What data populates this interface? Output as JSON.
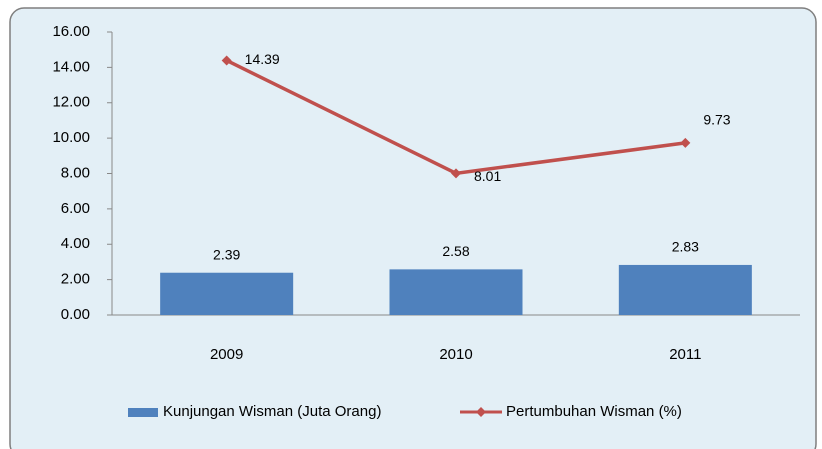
{
  "chart_data": {
    "type": "combo",
    "categories": [
      "2009",
      "2010",
      "2011"
    ],
    "series": [
      {
        "name": "Kunjungan Wisman  (Juta Orang)",
        "type": "bar",
        "color": "#4f81bd",
        "values": [
          2.39,
          2.58,
          2.83
        ]
      },
      {
        "name": "Pertumbuhan Wisman (%)",
        "type": "line",
        "color": "#c0504d",
        "values": [
          14.39,
          8.01,
          9.73
        ]
      }
    ],
    "ylim": [
      0,
      16
    ],
    "yticks": [
      {
        "value": 0,
        "label": "0.00"
      },
      {
        "value": 2,
        "label": "2.00"
      },
      {
        "value": 4,
        "label": "4.00"
      },
      {
        "value": 6,
        "label": "6.00"
      },
      {
        "value": 8,
        "label": "8.00"
      },
      {
        "value": 10,
        "label": "10.00"
      },
      {
        "value": 12,
        "label": "12.00"
      },
      {
        "value": 14,
        "label": "14.00"
      },
      {
        "value": 16,
        "label": "16.00"
      }
    ],
    "legend": "bottom"
  }
}
